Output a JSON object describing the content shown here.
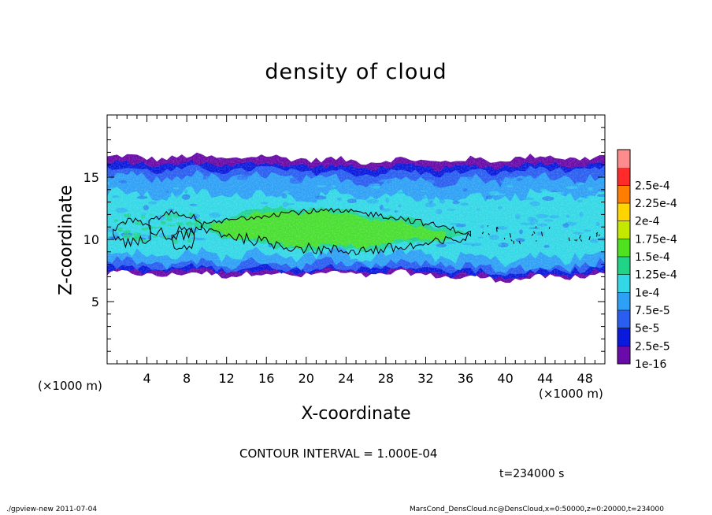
{
  "chart_data": {
    "type": "heatmap",
    "title": "density of cloud",
    "xlabel": "X-coordinate",
    "ylabel": "Z-coordinate",
    "x_unit_note": "(×1000 m)",
    "x_unit_note_right": "(×1000 m)",
    "xlim": [
      0,
      50
    ],
    "ylim": [
      0,
      20
    ],
    "x_ticks": [
      4,
      8,
      12,
      16,
      20,
      24,
      28,
      32,
      36,
      40,
      44,
      48
    ],
    "x_tick_labels": [
      "4",
      "8",
      "12",
      "16",
      "20",
      "24",
      "28",
      "32",
      "36",
      "40",
      "44",
      "48"
    ],
    "y_ticks": [
      5,
      10,
      15
    ],
    "y_tick_labels": [
      "5",
      "10",
      "15"
    ],
    "colorbar": {
      "levels": [
        "1e-16",
        "2.5e-5",
        "5e-5",
        "7.5e-5",
        "1e-4",
        "1.25e-4",
        "1.5e-4",
        "1.75e-4",
        "2e-4",
        "2.25e-4",
        "2.5e-4"
      ],
      "colors": [
        "#6a0aa8",
        "#0a1adc",
        "#2a5ef0",
        "#2ea0f5",
        "#33d8e6",
        "#1fd486",
        "#4fe01e",
        "#c4e800",
        "#ffd400",
        "#ff7d00",
        "#ff2a2a",
        "#ff8c8c"
      ],
      "legend_placement": "right"
    },
    "cloud_layer": {
      "base_z": 7.2,
      "top_z": 16.6,
      "high_density_core": {
        "x_range": [
          9.5,
          36
        ],
        "z_range": [
          9.5,
          12.5
        ],
        "value": 0.00011
      }
    },
    "contour_interval": "CONTOUR INTERVAL = 1.000E-04",
    "time": "t=234000 s"
  },
  "footer": {
    "left": "./gpview-new   2011-07-04",
    "right": "MarsCond_DensCloud.nc@DensCloud,x=0:50000,z=0:20000,t=234000"
  }
}
